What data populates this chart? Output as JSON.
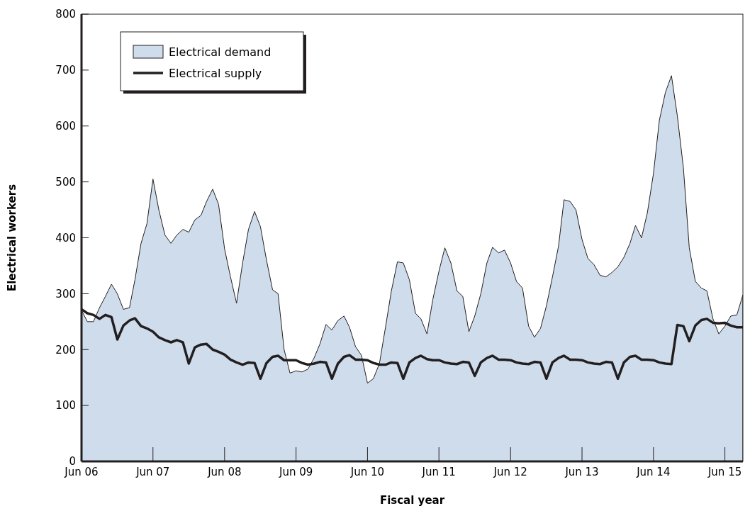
{
  "chart_data": {
    "type": "area",
    "xlabel": "Fiscal year",
    "ylabel": "Electrical workers",
    "x": [
      "2006-06",
      "2006-07",
      "2006-08",
      "2006-09",
      "2006-10",
      "2006-11",
      "2006-12",
      "2007-01",
      "2007-02",
      "2007-03",
      "2007-04",
      "2007-05",
      "2007-06",
      "2007-07",
      "2007-08",
      "2007-09",
      "2007-10",
      "2007-11",
      "2007-12",
      "2008-01",
      "2008-02",
      "2008-03",
      "2008-04",
      "2008-05",
      "2008-06",
      "2008-07",
      "2008-08",
      "2008-09",
      "2008-10",
      "2008-11",
      "2008-12",
      "2009-01",
      "2009-02",
      "2009-03",
      "2009-04",
      "2009-05",
      "2009-06",
      "2009-07",
      "2009-08",
      "2009-09",
      "2009-10",
      "2009-11",
      "2009-12",
      "2010-01",
      "2010-02",
      "2010-03",
      "2010-04",
      "2010-05",
      "2010-06",
      "2010-07",
      "2010-08",
      "2010-09",
      "2010-10",
      "2010-11",
      "2010-12",
      "2011-01",
      "2011-02",
      "2011-03",
      "2011-04",
      "2011-05",
      "2011-06",
      "2011-07",
      "2011-08",
      "2011-09",
      "2011-10",
      "2011-11",
      "2011-12",
      "2012-01",
      "2012-02",
      "2012-03",
      "2012-04",
      "2012-05",
      "2012-06",
      "2012-07",
      "2012-08",
      "2012-09",
      "2012-10",
      "2012-11",
      "2012-12",
      "2013-01",
      "2013-02",
      "2013-03",
      "2013-04",
      "2013-05",
      "2013-06",
      "2013-07",
      "2013-08",
      "2013-09",
      "2013-10",
      "2013-11",
      "2013-12",
      "2014-01",
      "2014-02",
      "2014-03",
      "2014-04",
      "2014-05",
      "2014-06",
      "2014-07",
      "2014-08",
      "2014-09",
      "2014-10",
      "2014-11",
      "2014-12",
      "2015-01",
      "2015-02",
      "2015-03",
      "2015-04",
      "2015-05",
      "2015-06",
      "2015-07",
      "2015-08",
      "2015-09"
    ],
    "series": [
      {
        "name": "Electrical demand",
        "color": "#cfdcec",
        "values": [
          270,
          250,
          250,
          275,
          295,
          317,
          300,
          272,
          275,
          325,
          390,
          425,
          505,
          450,
          405,
          390,
          405,
          415,
          410,
          432,
          440,
          465,
          487,
          460,
          380,
          330,
          283,
          355,
          415,
          447,
          420,
          360,
          307,
          300,
          200,
          158,
          162,
          160,
          165,
          185,
          210,
          245,
          235,
          252,
          260,
          240,
          205,
          190,
          140,
          148,
          175,
          240,
          305,
          357,
          355,
          325,
          265,
          255,
          228,
          290,
          340,
          382,
          355,
          305,
          295,
          232,
          260,
          300,
          355,
          383,
          373,
          378,
          355,
          322,
          310,
          242,
          222,
          238,
          278,
          330,
          385,
          468,
          465,
          450,
          397,
          363,
          352,
          333,
          330,
          338,
          348,
          365,
          390,
          422,
          400,
          445,
          515,
          610,
          660,
          690,
          618,
          525,
          382,
          322,
          310,
          305,
          255,
          228,
          242,
          260,
          262,
          298
        ]
      },
      {
        "name": "Electrical supply",
        "type": "line",
        "color": "#231f20",
        "values": [
          272,
          265,
          262,
          255,
          262,
          258,
          218,
          243,
          252,
          256,
          242,
          238,
          232,
          222,
          217,
          213,
          217,
          213,
          175,
          204,
          209,
          210,
          200,
          196,
          191,
          182,
          177,
          173,
          177,
          176,
          148,
          176,
          187,
          189,
          181,
          181,
          181,
          176,
          173,
          175,
          178,
          177,
          148,
          175,
          187,
          190,
          182,
          182,
          181,
          176,
          173,
          173,
          177,
          176,
          148,
          177,
          185,
          189,
          183,
          181,
          181,
          177,
          175,
          174,
          178,
          177,
          153,
          177,
          185,
          189,
          182,
          182,
          181,
          177,
          175,
          174,
          178,
          177,
          148,
          177,
          185,
          189,
          182,
          182,
          181,
          177,
          175,
          174,
          178,
          177,
          148,
          177,
          187,
          189,
          182,
          182,
          181,
          177,
          175,
          174,
          244,
          242,
          215,
          243,
          253,
          255,
          248,
          247,
          248,
          243,
          240,
          240
        ]
      }
    ],
    "xlim": [
      "2006-06",
      "2015-09"
    ],
    "xticks": [
      {
        "value": "2006-06",
        "label": "Jun 06"
      },
      {
        "value": "2007-06",
        "label": "Jun 07"
      },
      {
        "value": "2008-06",
        "label": "Jun 08"
      },
      {
        "value": "2009-06",
        "label": "Jun 09"
      },
      {
        "value": "2010-06",
        "label": "Jun 10"
      },
      {
        "value": "2011-06",
        "label": "Jun 11"
      },
      {
        "value": "2012-06",
        "label": "Jun 12"
      },
      {
        "value": "2013-06",
        "label": "Jun 13"
      },
      {
        "value": "2014-06",
        "label": "Jun 14"
      },
      {
        "value": "2015-06",
        "label": "Jun 15"
      }
    ],
    "ylim": [
      0,
      800
    ],
    "yticks": [
      0,
      100,
      200,
      300,
      400,
      500,
      600,
      700,
      800
    ],
    "legend": "top left"
  }
}
